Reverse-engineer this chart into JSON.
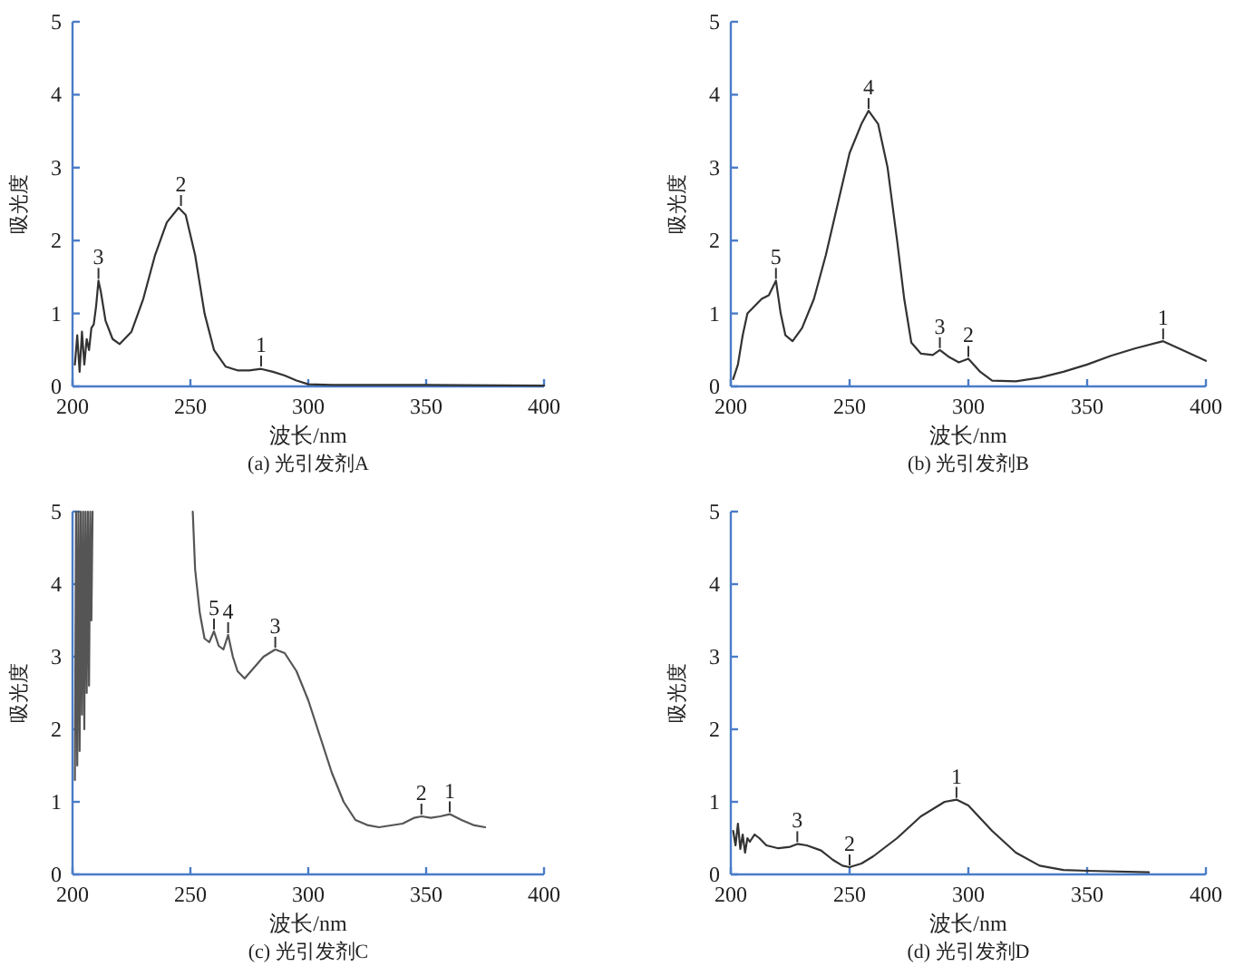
{
  "chart_data": [
    {
      "type": "line",
      "title": "(a) 光引发剂A",
      "xlabel": "波长/nm",
      "ylabel": "吸光度",
      "xlim": [
        200,
        400
      ],
      "ylim": [
        0,
        5
      ],
      "xticks": [
        200,
        250,
        300,
        350,
        400
      ],
      "yticks": [
        0,
        1,
        2,
        3,
        4,
        5
      ],
      "x": [
        201,
        202,
        203,
        204,
        205,
        206,
        207,
        208,
        209,
        210,
        211,
        212,
        214,
        217,
        220,
        225,
        230,
        235,
        240,
        245,
        248,
        252,
        256,
        260,
        265,
        270,
        275,
        280,
        285,
        290,
        295,
        300,
        310,
        350,
        400
      ],
      "series": [
        {
          "color": "#333333",
          "values": [
            0.3,
            0.7,
            0.2,
            0.75,
            0.3,
            0.65,
            0.5,
            0.8,
            0.85,
            1.1,
            1.45,
            1.3,
            0.9,
            0.65,
            0.58,
            0.75,
            1.2,
            1.8,
            2.25,
            2.45,
            2.35,
            1.8,
            1.0,
            0.5,
            0.27,
            0.22,
            0.22,
            0.24,
            0.2,
            0.15,
            0.08,
            0.03,
            0.02,
            0.02,
            0.01
          ]
        }
      ],
      "annotations": [
        {
          "text": "3",
          "x": 211,
          "y": 1.45
        },
        {
          "text": "2",
          "x": 246,
          "y": 2.45
        },
        {
          "text": "1",
          "x": 280,
          "y": 0.25
        }
      ]
    },
    {
      "type": "line",
      "title": "(b) 光引发剂B",
      "xlabel": "波长/nm",
      "ylabel": "吸光度",
      "xlim": [
        200,
        400
      ],
      "ylim": [
        0,
        5
      ],
      "xticks": [
        200,
        250,
        300,
        350,
        400
      ],
      "yticks": [
        0,
        1,
        2,
        3,
        4,
        5
      ],
      "x": [
        201,
        203,
        205,
        207,
        210,
        213,
        216,
        219,
        221,
        223,
        226,
        230,
        235,
        240,
        245,
        250,
        255,
        258,
        262,
        266,
        270,
        273,
        276,
        280,
        285,
        288,
        292,
        296,
        300,
        305,
        310,
        320,
        330,
        340,
        350,
        360,
        370,
        382,
        390,
        400
      ],
      "series": [
        {
          "color": "#333333",
          "values": [
            0.1,
            0.3,
            0.7,
            1.0,
            1.1,
            1.2,
            1.25,
            1.45,
            1.0,
            0.7,
            0.62,
            0.8,
            1.2,
            1.8,
            2.5,
            3.2,
            3.6,
            3.78,
            3.6,
            3.0,
            2.0,
            1.2,
            0.6,
            0.45,
            0.43,
            0.5,
            0.4,
            0.33,
            0.38,
            0.2,
            0.08,
            0.07,
            0.12,
            0.2,
            0.3,
            0.42,
            0.52,
            0.62,
            0.5,
            0.35
          ]
        }
      ],
      "annotations": [
        {
          "text": "5",
          "x": 219,
          "y": 1.45
        },
        {
          "text": "4",
          "x": 258,
          "y": 3.78
        },
        {
          "text": "3",
          "x": 288,
          "y": 0.5
        },
        {
          "text": "2",
          "x": 300,
          "y": 0.38
        },
        {
          "text": "1",
          "x": 382,
          "y": 0.62
        }
      ]
    },
    {
      "type": "line",
      "title": "(c) 光引发剂C",
      "xlabel": "波长/nm",
      "ylabel": "吸光度",
      "xlim": [
        200,
        400
      ],
      "ylim": [
        0,
        5
      ],
      "xticks": [
        200,
        250,
        300,
        350,
        400
      ],
      "yticks": [
        0,
        1,
        2,
        3,
        4,
        5
      ],
      "series": [
        {
          "color": "#555555",
          "x": [
            201,
            201.5,
            202,
            202.5,
            203,
            203.5,
            204,
            204.5,
            205,
            205.5,
            206,
            206.5,
            207,
            207.5,
            208,
            208.5
          ],
          "values": [
            1.3,
            5,
            1.5,
            5,
            1.7,
            5,
            2.2,
            5,
            2.0,
            5,
            2.5,
            5,
            2.6,
            5,
            3.5,
            5
          ]
        },
        {
          "color": "#555555",
          "x": [
            251,
            252,
            254,
            256,
            258,
            260,
            262,
            264,
            266,
            268,
            270,
            273,
            277,
            281,
            286,
            290,
            295,
            300,
            305,
            310,
            315,
            320,
            325,
            330,
            340,
            345,
            348,
            352,
            356,
            360,
            365,
            370,
            375
          ],
          "values": [
            5,
            4.2,
            3.6,
            3.25,
            3.2,
            3.35,
            3.15,
            3.1,
            3.3,
            3.0,
            2.8,
            2.7,
            2.85,
            3.0,
            3.1,
            3.05,
            2.8,
            2.4,
            1.9,
            1.4,
            1.0,
            0.75,
            0.68,
            0.65,
            0.7,
            0.78,
            0.8,
            0.78,
            0.8,
            0.83,
            0.75,
            0.68,
            0.65
          ]
        }
      ],
      "annotations": [
        {
          "text": "5",
          "x": 260,
          "y": 3.35
        },
        {
          "text": "4",
          "x": 266,
          "y": 3.3
        },
        {
          "text": "3",
          "x": 286,
          "y": 3.1
        },
        {
          "text": "2",
          "x": 348,
          "y": 0.8
        },
        {
          "text": "1",
          "x": 360,
          "y": 0.83
        }
      ]
    },
    {
      "type": "line",
      "title": "(d) 光引发剂D",
      "xlabel": "波长/nm",
      "ylabel": "吸光度",
      "xlim": [
        200,
        400
      ],
      "ylim": [
        0,
        5
      ],
      "xticks": [
        200,
        250,
        300,
        350,
        400
      ],
      "yticks": [
        0,
        1,
        2,
        3,
        4,
        5
      ],
      "x": [
        201,
        202,
        203,
        204,
        205,
        206,
        207,
        208,
        210,
        212,
        215,
        220,
        225,
        228,
        232,
        238,
        243,
        247,
        250,
        255,
        260,
        270,
        280,
        290,
        295,
        300,
        310,
        320,
        330,
        340,
        350,
        376
      ],
      "series": [
        {
          "color": "#333333",
          "values": [
            0.6,
            0.4,
            0.7,
            0.35,
            0.55,
            0.3,
            0.5,
            0.45,
            0.55,
            0.5,
            0.4,
            0.36,
            0.38,
            0.42,
            0.4,
            0.33,
            0.2,
            0.12,
            0.1,
            0.15,
            0.25,
            0.5,
            0.8,
            1.0,
            1.03,
            0.95,
            0.6,
            0.3,
            0.12,
            0.06,
            0.05,
            0.03
          ]
        }
      ],
      "annotations": [
        {
          "text": "3",
          "x": 228,
          "y": 0.42
        },
        {
          "text": "2",
          "x": 250,
          "y": 0.1
        },
        {
          "text": "1",
          "x": 295,
          "y": 1.03
        }
      ]
    }
  ]
}
